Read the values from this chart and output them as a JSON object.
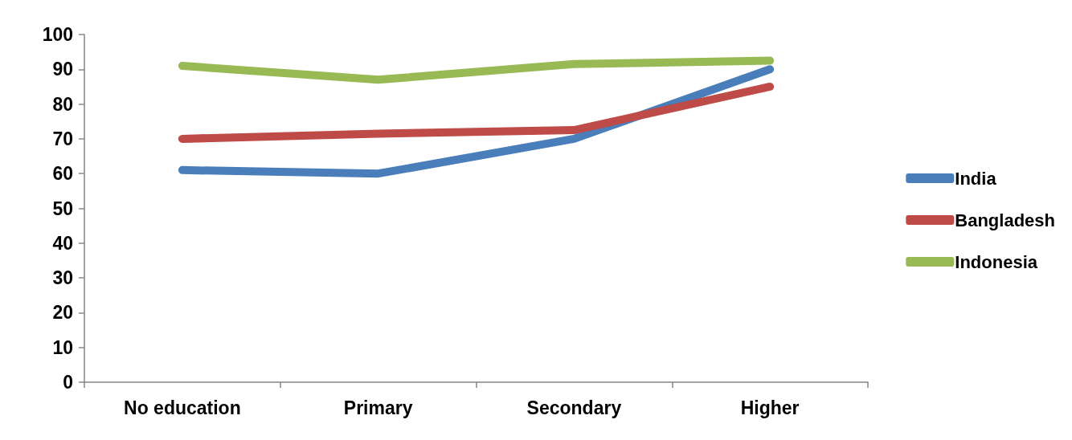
{
  "chart_data": {
    "type": "line",
    "categories": [
      "No education",
      "Primary",
      "Secondary",
      "Higher"
    ],
    "series": [
      {
        "name": "India",
        "color": "#4a7ebb",
        "values": [
          61,
          60,
          70,
          90
        ]
      },
      {
        "name": "Bangladesh",
        "color": "#be4b48",
        "values": [
          70,
          71.5,
          72.5,
          85
        ]
      },
      {
        "name": "Indonesia",
        "color": "#98b954",
        "values": [
          91,
          87,
          91.5,
          92.5
        ]
      }
    ],
    "ylim": [
      0,
      100
    ],
    "yticks": [
      0,
      10,
      20,
      30,
      40,
      50,
      60,
      70,
      80,
      90,
      100
    ],
    "grid": false,
    "legend": "right",
    "marker": "none",
    "line_style": "solid"
  }
}
